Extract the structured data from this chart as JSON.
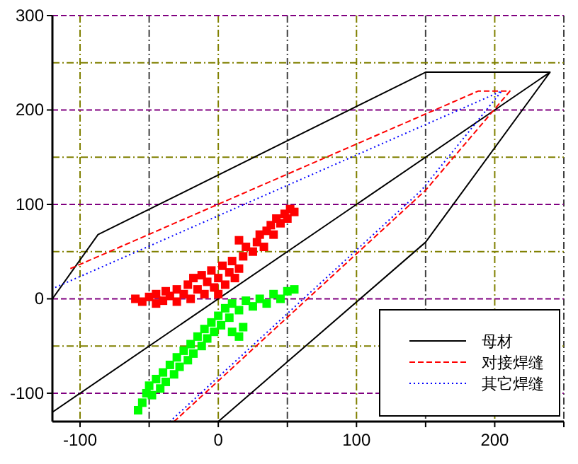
{
  "chart_data": {
    "type": "line",
    "xlim": [
      -120,
      250
    ],
    "ylim": [
      -130,
      300
    ],
    "xticks": [
      {
        "value": -100,
        "label": "-100"
      },
      {
        "value": -50,
        "label": null
      },
      {
        "value": 0,
        "label": "0"
      },
      {
        "value": 50,
        "label": null
      },
      {
        "value": 100,
        "label": "100"
      },
      {
        "value": 150,
        "label": null
      },
      {
        "value": 200,
        "label": "200"
      },
      {
        "value": 250,
        "label": null
      }
    ],
    "yticks": [
      -100,
      {
        "value": -50,
        "label": null
      },
      0,
      {
        "value": 50,
        "label": null
      },
      100,
      {
        "value": 150,
        "label": null
      },
      200,
      {
        "value": 250,
        "label": null
      },
      300
    ],
    "grid": true,
    "legend": "bottom right",
    "marker": "none",
    "series": [
      {
        "name": "母材",
        "color": "#000000",
        "line_style": "solid",
        "x": [
          -120,
          -87,
          150,
          240,
          -120,
          null,
          240,
          150,
          0
        ],
        "values": [
          0,
          68,
          240,
          240,
          -120,
          null,
          240,
          60,
          -130
        ]
      },
      {
        "name": "对接焊缝",
        "color": "#ff0000",
        "line_style": "dashed",
        "x": [
          -107,
          188,
          211,
          150,
          -32
        ],
        "values": [
          32,
          220,
          220,
          115,
          -130
        ]
      },
      {
        "name": "其它焊缝",
        "color": "#0000ff",
        "line_style": "dotted",
        "x": [
          -118,
          205,
          147,
          -35
        ],
        "values": [
          12,
          220,
          115,
          -130
        ]
      },
      {
        "type": "scatter",
        "marker": "square",
        "color": "#ff0000",
        "x": [
          -60,
          -55,
          -50,
          -45,
          -45,
          -40,
          -38,
          -35,
          -30,
          -30,
          -25,
          -22,
          -20,
          -18,
          -15,
          -12,
          -10,
          -8,
          -5,
          -3,
          0,
          0,
          3,
          5,
          8,
          10,
          12,
          15,
          18,
          20,
          15,
          25,
          28,
          30,
          33,
          35,
          38,
          40,
          42,
          45,
          48,
          50,
          52,
          55
        ],
        "values": [
          0,
          -3,
          2,
          -5,
          5,
          -2,
          8,
          3,
          -3,
          10,
          5,
          15,
          0,
          22,
          10,
          25,
          5,
          18,
          30,
          12,
          22,
          5,
          35,
          15,
          28,
          40,
          22,
          32,
          45,
          55,
          62,
          50,
          60,
          68,
          55,
          72,
          78,
          68,
          85,
          80,
          90,
          85,
          95,
          92
        ]
      },
      {
        "type": "scatter",
        "marker": "square",
        "color": "#00ff00",
        "x": [
          -58,
          -55,
          -52,
          -50,
          -48,
          -45,
          -42,
          -40,
          -38,
          -35,
          -32,
          -30,
          -28,
          -25,
          -22,
          -20,
          -18,
          -15,
          -12,
          -10,
          -8,
          -5,
          -3,
          0,
          2,
          5,
          8,
          10,
          15,
          18,
          10,
          15,
          20,
          25,
          30,
          35,
          40,
          45,
          50,
          55
        ],
        "values": [
          -118,
          -110,
          -100,
          -92,
          -102,
          -85,
          -95,
          -78,
          -88,
          -70,
          -80,
          -62,
          -72,
          -55,
          -65,
          -48,
          -58,
          -40,
          -50,
          -32,
          -42,
          -25,
          -35,
          -18,
          -28,
          -10,
          -20,
          -35,
          -40,
          -30,
          -5,
          -12,
          -2,
          -8,
          0,
          -5,
          5,
          0,
          8,
          10
        ]
      }
    ]
  }
}
